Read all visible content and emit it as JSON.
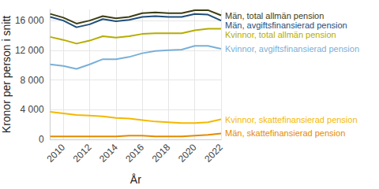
{
  "chart_data": {
    "type": "line",
    "x_label": "År",
    "y_label": "Kronor per person i snitt",
    "x": [
      2009,
      2010,
      2011,
      2012,
      2013,
      2014,
      2015,
      2016,
      2017,
      2018,
      2019,
      2020,
      2021,
      2022
    ],
    "xlim": [
      2009,
      2022
    ],
    "xticks": [
      2010,
      2012,
      2014,
      2016,
      2018,
      2020,
      2022
    ],
    "ylim": [
      0,
      17500
    ],
    "yticks": [
      0,
      {
        "value": 4000,
        "label": "4 000"
      },
      {
        "value": 8000,
        "label": "8 000"
      },
      {
        "value": 12000,
        "label": "12 000"
      },
      {
        "value": 16000,
        "label": "16 000"
      }
    ],
    "grid": true,
    "series": [
      {
        "name": "Män, total allmän pension",
        "color": "#3d3d14",
        "values": [
          16900,
          16400,
          15600,
          16000,
          16600,
          16300,
          16500,
          17000,
          17100,
          17000,
          17000,
          17400,
          17400,
          16700
        ]
      },
      {
        "name": "Män, avgiftsfinansierad pension",
        "color": "#1f4e79",
        "values": [
          16500,
          16000,
          15100,
          15500,
          16200,
          15900,
          16100,
          16500,
          16600,
          16500,
          16500,
          16900,
          16800,
          16000
        ]
      },
      {
        "name": "Kvinnor, total allmän pension",
        "color": "#b5ad00",
        "values": [
          13800,
          13400,
          12900,
          13300,
          13900,
          13700,
          13900,
          14200,
          14300,
          14300,
          14300,
          14700,
          14900,
          14900
        ]
      },
      {
        "name": "Kvinnor, avgiftsfinansierad pension",
        "color": "#7ab0d8",
        "values": [
          10100,
          9900,
          9500,
          10100,
          10800,
          10800,
          11100,
          11600,
          11900,
          12000,
          12100,
          12600,
          12600,
          12200
        ]
      },
      {
        "name": "Kvinnor, skattefinansierad pension",
        "color": "#f5b800",
        "values": [
          3700,
          3500,
          3300,
          3200,
          3100,
          2900,
          2800,
          2600,
          2400,
          2300,
          2200,
          2200,
          2300,
          2700
        ]
      },
      {
        "name": "Män, skattefinansierad pension",
        "color": "#e58a00",
        "values": [
          400,
          400,
          400,
          400,
          400,
          400,
          500,
          500,
          400,
          400,
          400,
          500,
          600,
          800
        ]
      }
    ]
  }
}
